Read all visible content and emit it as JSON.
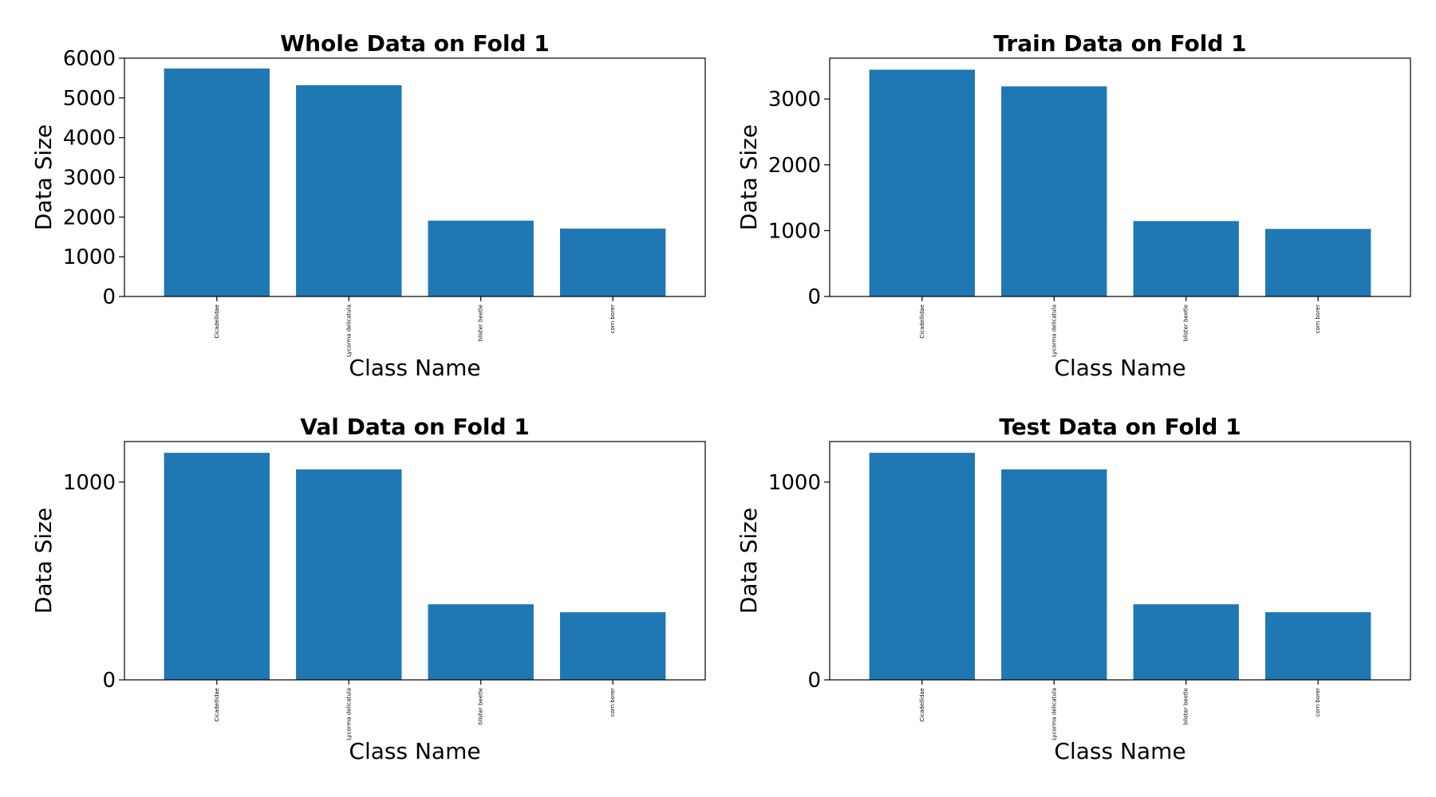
{
  "bar_color": "#1f77b4",
  "chart_data": [
    {
      "type": "bar",
      "title": "Whole Data on Fold 1",
      "xlabel": "Class Name",
      "ylabel": "Data Size",
      "categories": [
        "Cicadellidae",
        "Lycorma delicatula",
        "blister beetle",
        "corn borer"
      ],
      "values": [
        5740,
        5320,
        1910,
        1710
      ],
      "ylim": [
        0,
        6000
      ],
      "yticks": [
        0,
        1000,
        2000,
        3000,
        4000,
        5000,
        6000
      ],
      "ytick_labels": [
        "0",
        "1000",
        "2000",
        "3000",
        "4000",
        "5000",
        "6000"
      ]
    },
    {
      "type": "bar",
      "title": "Train Data on Fold 1",
      "xlabel": "Class Name",
      "ylabel": "Data Size",
      "categories": [
        "Cicadellidae",
        "Lycorma delicatula",
        "blister beetle",
        "corn borer"
      ],
      "values": [
        3445,
        3192,
        1146,
        1026
      ],
      "ylim": [
        0,
        3620
      ],
      "yticks": [
        0,
        1000,
        2000,
        3000
      ],
      "ytick_labels": [
        "0",
        "1000",
        "2000",
        "3000"
      ]
    },
    {
      "type": "bar",
      "title": "Val Data on Fold 1",
      "xlabel": "Class Name",
      "ylabel": "Data Size",
      "categories": [
        "Cicadellidae",
        "Lycorma delicatula",
        "blister beetle",
        "corn borer"
      ],
      "values": [
        1148,
        1064,
        382,
        342
      ],
      "ylim": [
        0,
        1205
      ],
      "yticks": [
        0,
        1000
      ],
      "ytick_labels": [
        "0",
        "1000"
      ]
    },
    {
      "type": "bar",
      "title": "Test Data on Fold 1",
      "xlabel": "Class Name",
      "ylabel": "Data Size",
      "categories": [
        "Cicadellidae",
        "Lycorma delicatula",
        "blister beetle",
        "corn borer"
      ],
      "values": [
        1148,
        1064,
        382,
        342
      ],
      "ylim": [
        0,
        1205
      ],
      "yticks": [
        0,
        1000
      ],
      "ytick_labels": [
        "0",
        "1000"
      ]
    }
  ]
}
